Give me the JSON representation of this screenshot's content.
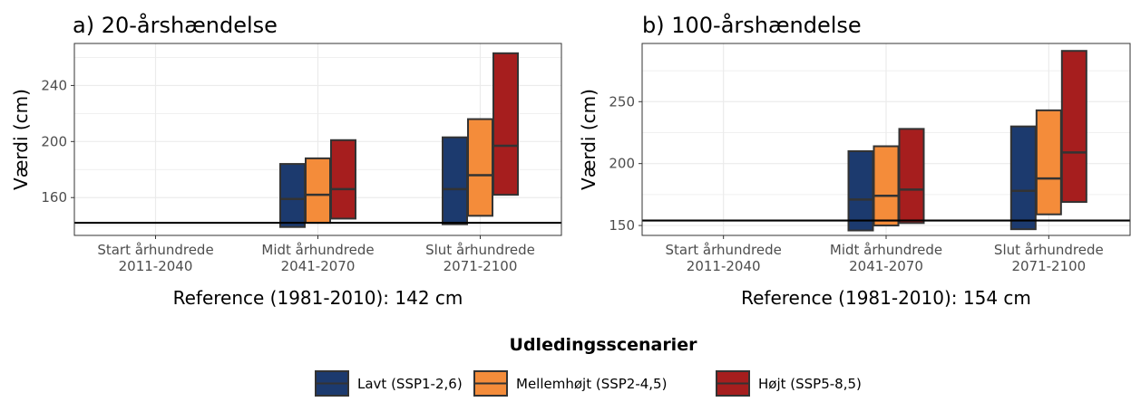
{
  "colors": {
    "lavt": "#1c3a6e",
    "mellemhoejt": "#f48c3a",
    "hoejt": "#a61e1e",
    "box_border": "#333333",
    "reference_line": "#000000",
    "grid": "#ebebeb",
    "panel_border": "#333333"
  },
  "legend": {
    "title": "Udledingsscenarier",
    "items": [
      {
        "label": "Lavt (SSP1-2,6)",
        "color_key": "lavt"
      },
      {
        "label": "Mellemhøjt (SSP2-4,5)",
        "color_key": "mellemhoejt"
      },
      {
        "label": "Højt (SSP5-8,5)",
        "color_key": "hoejt"
      }
    ]
  },
  "chart_data": [
    {
      "type": "crossbar",
      "title": "a) 20-årshændelse",
      "ylabel": "Værdi (cm)",
      "xlabel": "Reference (1981-2010): 142 cm",
      "ylim": [
        133,
        270
      ],
      "yticks": [
        160,
        200,
        240
      ],
      "reference": 142,
      "grid": true,
      "categories": [
        {
          "line1": "Start århundrede",
          "line2": "2011-2040"
        },
        {
          "line1": "Midt århundrede",
          "line2": "2041-2070"
        },
        {
          "line1": "Slut århundrede",
          "line2": "2071-2100"
        }
      ],
      "series": [
        {
          "name": "Lavt (SSP1-2,6)",
          "color_key": "lavt",
          "values": [
            null,
            {
              "low": 139,
              "mid": 159,
              "high": 184
            },
            {
              "low": 141,
              "mid": 166,
              "high": 203
            }
          ]
        },
        {
          "name": "Mellemhøjt (SSP2-4,5)",
          "color_key": "mellemhoejt",
          "values": [
            null,
            {
              "low": 142,
              "mid": 162,
              "high": 188
            },
            {
              "low": 147,
              "mid": 176,
              "high": 216
            }
          ]
        },
        {
          "name": "Højt (SSP5-8,5)",
          "color_key": "hoejt",
          "values": [
            null,
            {
              "low": 145,
              "mid": 166,
              "high": 201
            },
            {
              "low": 162,
              "mid": 197,
              "high": 263
            }
          ]
        }
      ]
    },
    {
      "type": "crossbar",
      "title": "b) 100-årshændelse",
      "ylabel": "Værdi (cm)",
      "xlabel": "Reference (1981-2010): 154 cm",
      "ylim": [
        142,
        297
      ],
      "yticks": [
        150,
        200,
        250
      ],
      "reference": 154,
      "grid": true,
      "categories": [
        {
          "line1": "Start århundrede",
          "line2": "2011-2040"
        },
        {
          "line1": "Midt århundrede",
          "line2": "2041-2070"
        },
        {
          "line1": "Slut århundrede",
          "line2": "2071-2100"
        }
      ],
      "series": [
        {
          "name": "Lavt (SSP1-2,6)",
          "color_key": "lavt",
          "values": [
            null,
            {
              "low": 146,
              "mid": 171,
              "high": 210
            },
            {
              "low": 147,
              "mid": 178,
              "high": 230
            }
          ]
        },
        {
          "name": "Mellemhøjt (SSP2-4,5)",
          "color_key": "mellemhoejt",
          "values": [
            null,
            {
              "low": 150,
              "mid": 174,
              "high": 214
            },
            {
              "low": 159,
              "mid": 188,
              "high": 243
            }
          ]
        },
        {
          "name": "Højt (SSP5-8,5)",
          "color_key": "hoejt",
          "values": [
            null,
            {
              "low": 152,
              "mid": 179,
              "high": 228
            },
            {
              "low": 169,
              "mid": 209,
              "high": 291
            }
          ]
        }
      ]
    }
  ]
}
